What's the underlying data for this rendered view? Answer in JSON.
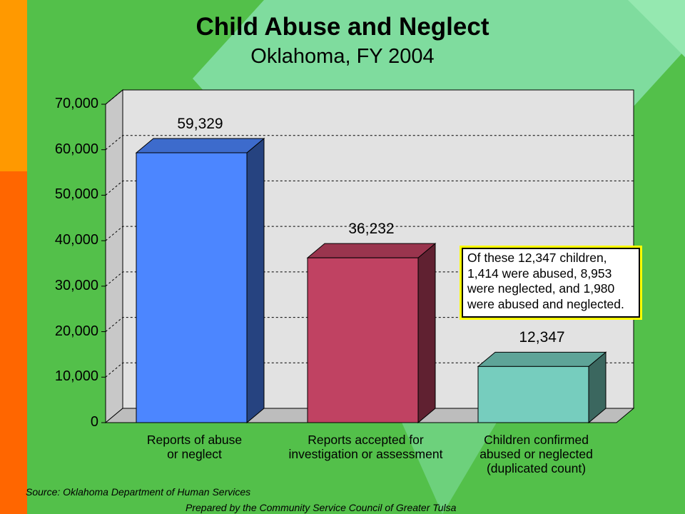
{
  "colors": {
    "background": "#53c04a",
    "diamond": "#7fdc9e",
    "left_strip_top": "#ff9900",
    "left_strip_bottom": "#ff6600",
    "plot_wall": "#e2e2e2",
    "highlight_border": "#ffff00"
  },
  "chart_data": {
    "type": "bar",
    "title": "Child Abuse and Neglect",
    "subtitle": "Oklahoma, FY 2004",
    "categories": [
      [
        "Reports of abuse",
        "or neglect"
      ],
      [
        "Reports accepted for",
        "investigation or assessment"
      ],
      [
        "Children confirmed",
        "abused or neglected",
        "(duplicated count)"
      ]
    ],
    "values": [
      59329,
      36232,
      12347
    ],
    "data_labels": [
      "59,329",
      "36,232",
      "12,347"
    ],
    "bar_colors": [
      "#4c86ff",
      "#c04262",
      "#76cdbe"
    ],
    "ylim": [
      0,
      70000
    ],
    "yticks": [
      0,
      10000,
      20000,
      30000,
      40000,
      50000,
      60000,
      70000
    ],
    "ytick_labels": [
      "0",
      "10,000",
      "20,000",
      "30,000",
      "40,000",
      "50,000",
      "60,000",
      "70,000"
    ],
    "grid": true,
    "style": "3d",
    "annotation": [
      "Of these 12,347 children,",
      "1,414 were abused, 8,953",
      "were neglected, and 1,980",
      "were abused and neglected."
    ]
  },
  "footer": {
    "source": "Source:  Oklahoma Department of Human Services",
    "prepared": "Prepared by the Community Service Council of Greater Tulsa"
  }
}
